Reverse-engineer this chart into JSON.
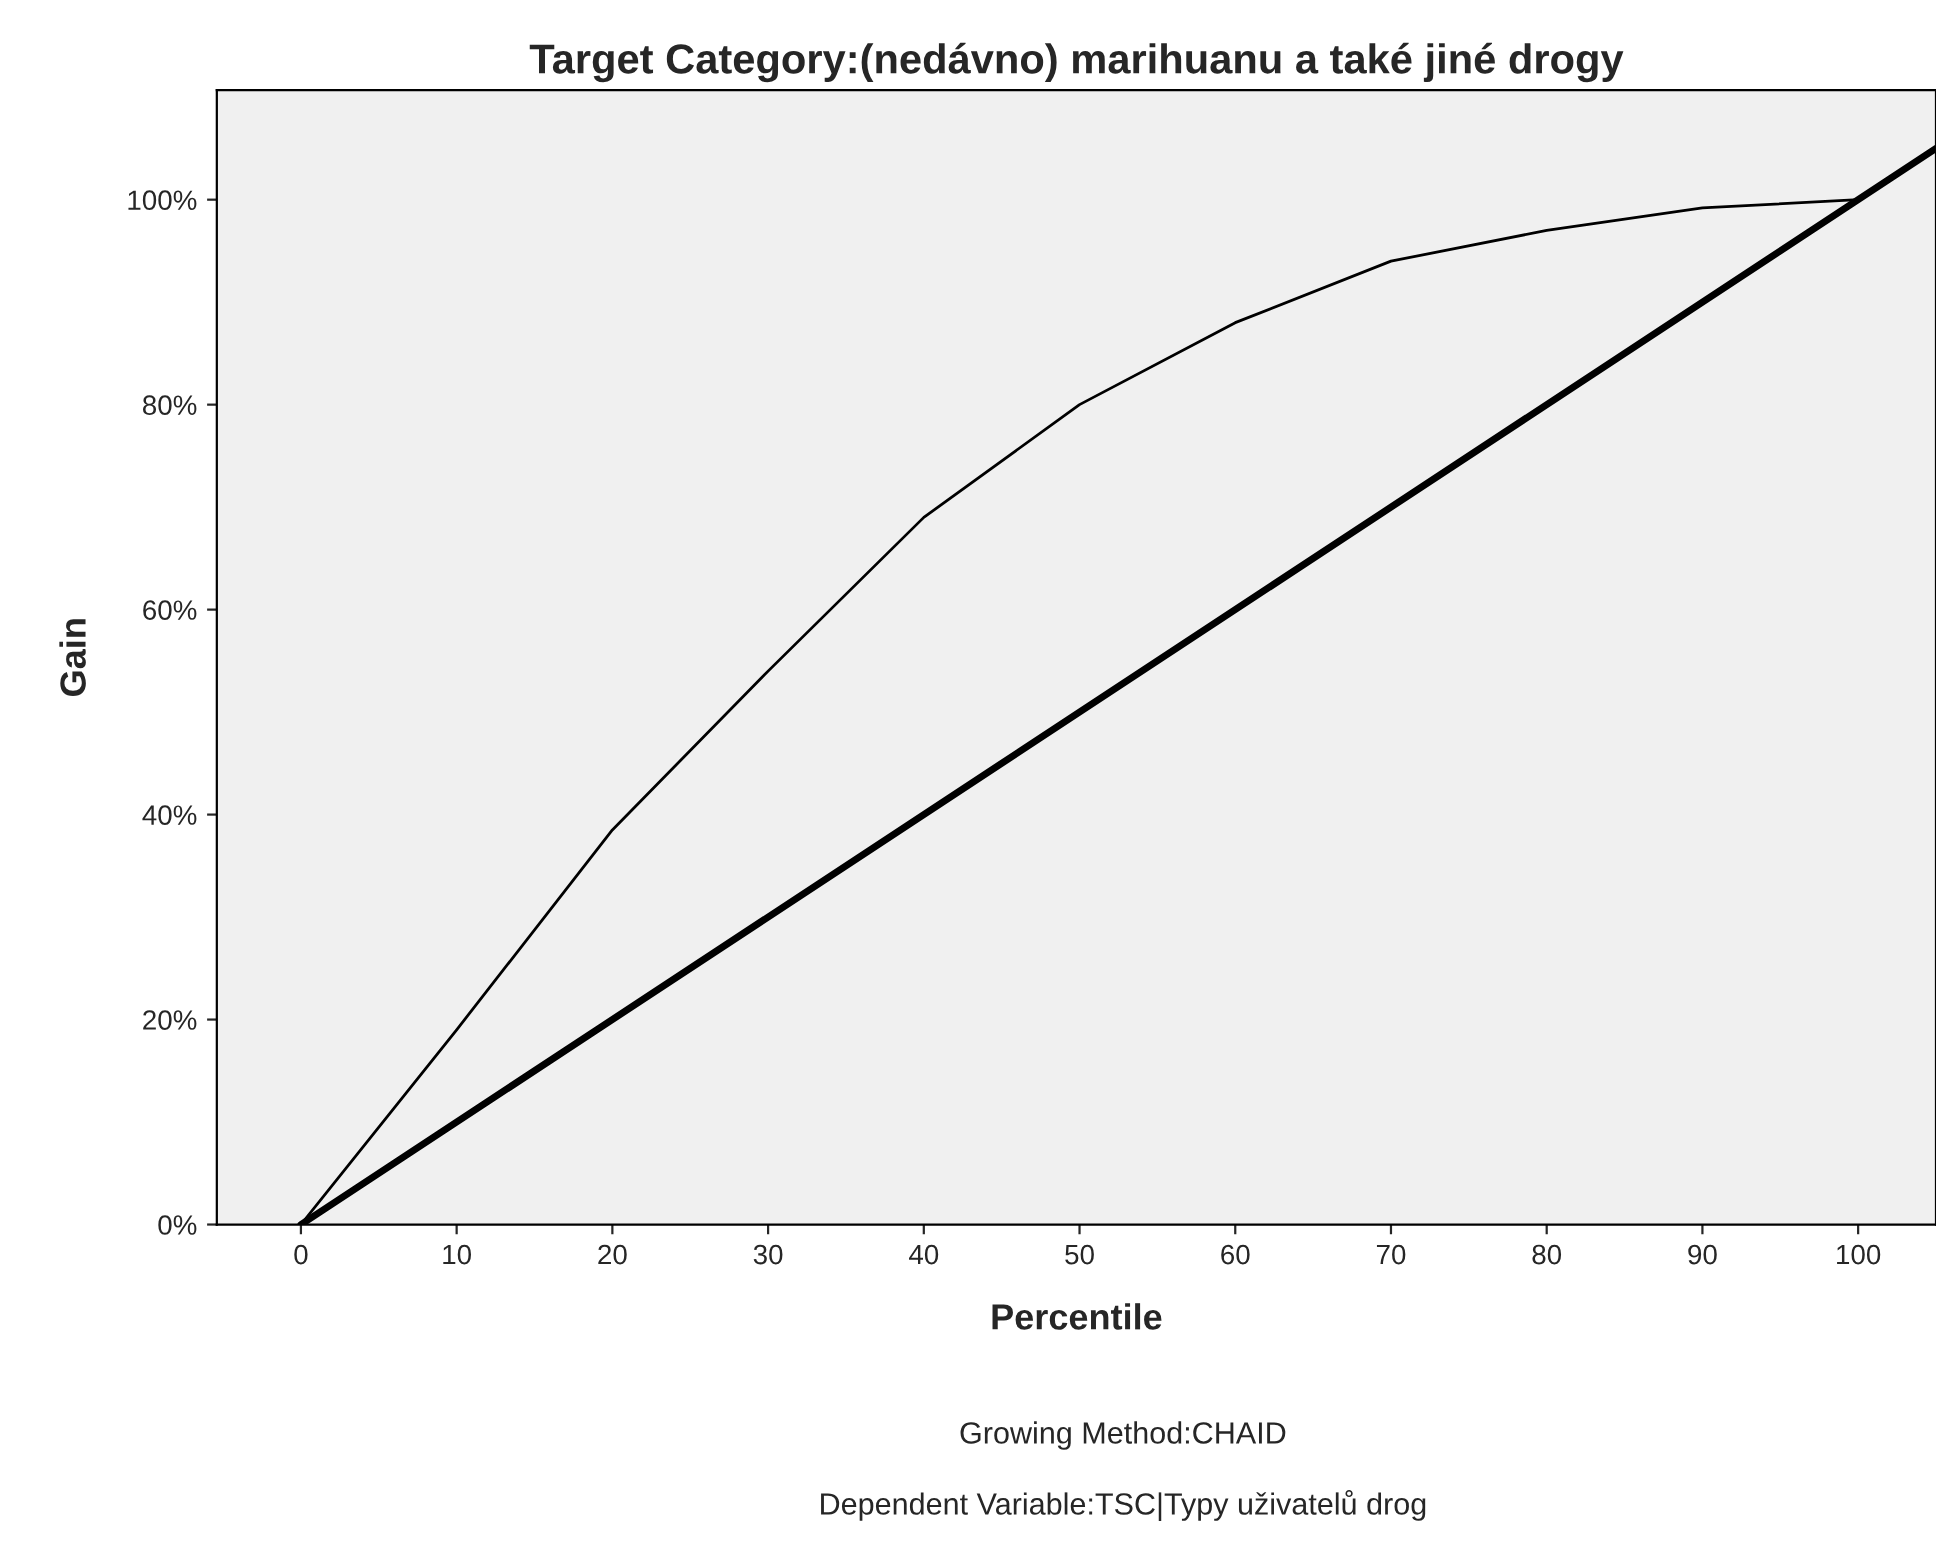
{
  "chart_data": {
    "type": "line",
    "title": "Target Category:(nedávno) marihuanu a také jiné drogy",
    "xlabel": "Percentile",
    "ylabel": "Gain",
    "annotations": [
      "Growing Method:CHAID",
      "Dependent Variable:TSC|Typy uživatelů drog"
    ],
    "series": [
      {
        "color": "#000000",
        "x": [
          0,
          10,
          20,
          30,
          40,
          50,
          60,
          70,
          80,
          90,
          100
        ],
        "values": [
          0,
          19,
          38.5,
          54,
          69,
          80,
          88,
          94,
          97,
          99.2,
          100
        ]
      },
      {
        "color": "#000000",
        "x": [
          0,
          105
        ],
        "values": [
          0,
          105
        ]
      }
    ],
    "xlim": [
      -5.4,
      105
    ],
    "ylim": [
      0,
      110.7
    ],
    "xticks": [
      0,
      10,
      20,
      30,
      40,
      50,
      60,
      70,
      80,
      90,
      100
    ],
    "yticks": [
      {
        "value": 0,
        "label": "0%"
      },
      {
        "value": 20,
        "label": "20%"
      },
      {
        "value": 40,
        "label": "40%"
      },
      {
        "value": 60,
        "label": "60%"
      },
      {
        "value": 80,
        "label": "80%"
      },
      {
        "value": 100,
        "label": "100%"
      }
    ],
    "grid": false,
    "legend": false,
    "marker": "none",
    "line_style": "solid"
  }
}
